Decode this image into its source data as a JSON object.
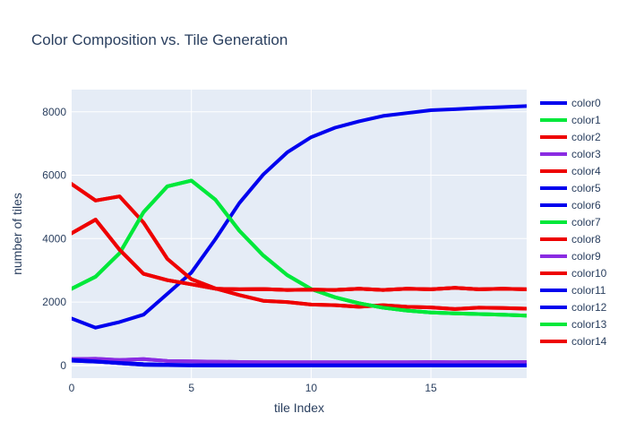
{
  "chart_data": {
    "type": "line",
    "title": "Color Composition vs. Tile Generation",
    "xlabel": "tile Index",
    "ylabel": "number of tiles",
    "xlim": [
      0,
      19
    ],
    "ylim": [
      -400,
      8700
    ],
    "xticks": [
      0,
      5,
      10,
      15
    ],
    "yticks": [
      0,
      2000,
      4000,
      6000,
      8000
    ],
    "grid": true,
    "legend_position": "right",
    "plot_background": "#e5ecf6",
    "x": [
      0,
      1,
      2,
      3,
      4,
      5,
      6,
      7,
      8,
      9,
      10,
      11,
      12,
      13,
      14,
      15,
      16,
      17,
      18,
      19
    ],
    "series": [
      {
        "name": "color0",
        "color": "#0000ee",
        "values": [
          1480,
          1190,
          1370,
          1600,
          2260,
          2930,
          3980,
          5120,
          6020,
          6720,
          7200,
          7500,
          7700,
          7870,
          7960,
          8050,
          8080,
          8120,
          8150,
          8180
        ]
      },
      {
        "name": "color1",
        "color": "#00e83a",
        "values": [
          2420,
          2800,
          3540,
          4830,
          5650,
          5830,
          5230,
          4250,
          3470,
          2850,
          2410,
          2150,
          1960,
          1820,
          1730,
          1670,
          1640,
          1620,
          1600,
          1570
        ]
      },
      {
        "name": "color2",
        "color": "#ee0000",
        "values": [
          5720,
          5200,
          5330,
          4510,
          3360,
          2720,
          2430,
          2220,
          2040,
          2000,
          1920,
          1900,
          1850,
          1900,
          1850,
          1830,
          1780,
          1820,
          1810,
          1790
        ]
      },
      {
        "name": "color3",
        "color": "#8a2be2",
        "values": [
          200,
          210,
          170,
          200,
          140,
          130,
          120,
          110,
          100,
          100,
          100,
          100,
          100,
          100,
          100,
          110,
          100,
          110,
          100,
          110
        ]
      },
      {
        "name": "color4",
        "color": "#ee0000",
        "values": [
          4170,
          4600,
          3650,
          2890,
          2690,
          2560,
          2420,
          2400,
          2410,
          2380,
          2390,
          2380,
          2420,
          2380,
          2420,
          2400,
          2450,
          2400,
          2420,
          2400
        ]
      },
      {
        "name": "color5",
        "color": "#0000ee",
        "values": [
          170,
          130,
          70,
          20,
          10,
          5,
          5,
          5,
          5,
          5,
          5,
          5,
          5,
          5,
          5,
          5,
          5,
          5,
          5,
          5
        ]
      },
      {
        "name": "color6",
        "color": "#0000ee",
        "values": [
          150,
          120,
          80,
          40,
          20,
          10,
          5,
          5,
          5,
          5,
          5,
          5,
          5,
          5,
          5,
          5,
          5,
          5,
          5,
          5
        ]
      },
      {
        "name": "color7",
        "color": "#00e83a",
        "values": [
          2420,
          2800,
          3540,
          4830,
          5650,
          5830,
          5230,
          4250,
          3470,
          2850,
          2410,
          2150,
          1960,
          1820,
          1730,
          1670,
          1640,
          1620,
          1600,
          1570
        ]
      },
      {
        "name": "color8",
        "color": "#ee0000",
        "values": [
          5720,
          5200,
          5330,
          4510,
          3360,
          2720,
          2430,
          2220,
          2040,
          2000,
          1920,
          1900,
          1850,
          1900,
          1850,
          1830,
          1780,
          1820,
          1810,
          1790
        ]
      },
      {
        "name": "color9",
        "color": "#8a2be2",
        "values": [
          200,
          210,
          170,
          200,
          140,
          130,
          120,
          110,
          100,
          100,
          100,
          100,
          100,
          100,
          100,
          110,
          100,
          110,
          100,
          110
        ]
      },
      {
        "name": "color10",
        "color": "#ee0000",
        "values": [
          4170,
          4600,
          3650,
          2890,
          2690,
          2560,
          2420,
          2400,
          2410,
          2380,
          2390,
          2380,
          2420,
          2380,
          2420,
          2400,
          2450,
          2400,
          2420,
          2400
        ]
      },
      {
        "name": "color11",
        "color": "#0000ee",
        "values": [
          170,
          130,
          70,
          20,
          10,
          5,
          5,
          5,
          5,
          5,
          5,
          5,
          5,
          5,
          5,
          5,
          5,
          5,
          5,
          5
        ]
      },
      {
        "name": "color12",
        "color": "#0000ee",
        "values": [
          150,
          120,
          80,
          40,
          20,
          10,
          5,
          5,
          5,
          5,
          5,
          5,
          5,
          5,
          5,
          5,
          5,
          5,
          5,
          5
        ]
      },
      {
        "name": "color13",
        "color": "#00e83a",
        "values": [
          2420,
          2800,
          3540,
          4830,
          5650,
          5830,
          5230,
          4250,
          3470,
          2850,
          2410,
          2150,
          1960,
          1820,
          1730,
          1670,
          1640,
          1620,
          1600,
          1570
        ]
      },
      {
        "name": "color14",
        "color": "#ee0000",
        "values": [
          4170,
          4600,
          3650,
          2890,
          2690,
          2560,
          2420,
          2400,
          2410,
          2380,
          2390,
          2380,
          2420,
          2380,
          2420,
          2400,
          2450,
          2400,
          2420,
          2400
        ]
      }
    ]
  }
}
